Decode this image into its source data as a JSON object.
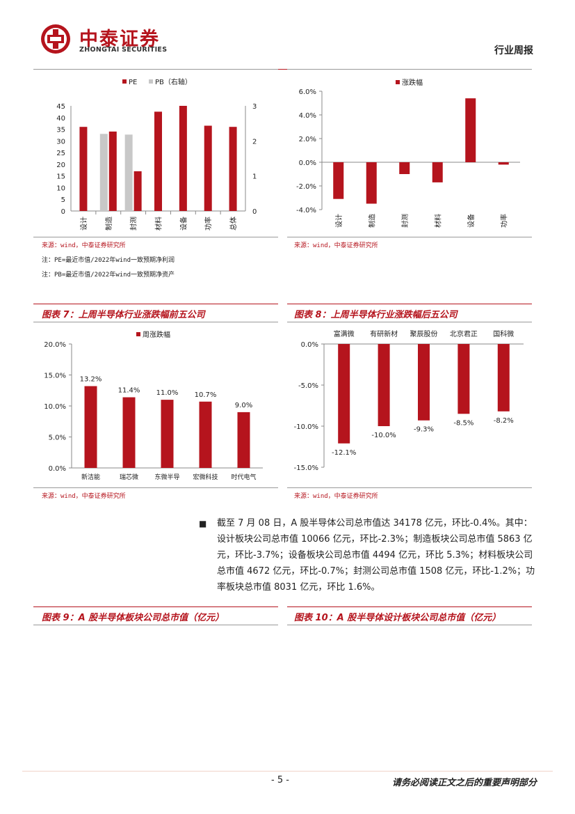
{
  "header": {
    "brand_cn": "中泰证券",
    "brand_en": "ZHONGTAI SECURITIES",
    "report_type": "行业周报",
    "accent_color": "#b5141d"
  },
  "charts": {
    "pe_pb": {
      "source": "来源：wind，中泰证券研究所",
      "notes": [
        "注：PE=最近市值/2022年wind一致预期净利润",
        "注：PB=最近市值/2022年wind一致预期净资产"
      ]
    },
    "weekly_change": {
      "source": "来源：wind，中泰证券研究所"
    },
    "fig7": {
      "title": "图表 7：上周半导体行业涨跌幅前五公司",
      "source": "来源：wind，中泰证券研究所"
    },
    "fig8": {
      "title": "图表 8：上周半导体行业涨跌幅后五公司",
      "source": "来源：wind，中泰证券研究所"
    }
  },
  "chart_data": [
    {
      "type": "bar",
      "categories": [
        "设计",
        "制造",
        "封测",
        "材料",
        "设备",
        "功率",
        "总体"
      ],
      "series": [
        {
          "name": "PE",
          "axis": "left",
          "color": "#b5141d",
          "values": [
            36,
            34,
            17,
            42.5,
            45,
            36.5,
            36
          ]
        },
        {
          "name": "PB（右轴）",
          "axis": "right",
          "color": "#c8c8c8",
          "values": [
            null,
            2.2,
            2.18,
            null,
            null,
            null,
            null
          ]
        }
      ],
      "yticks_left": [
        "0",
        "5",
        "10",
        "15",
        "20",
        "25",
        "30",
        "35",
        "40",
        "45"
      ],
      "yticks_right": [
        "0",
        "1",
        "2",
        "3"
      ],
      "ylim_left": [
        0,
        45
      ],
      "ylim_right": [
        0,
        3
      ],
      "legend": "top"
    },
    {
      "type": "bar",
      "categories": [
        "设计",
        "制造",
        "封测",
        "材料",
        "设备",
        "功率"
      ],
      "series": [
        {
          "name": "涨跌幅",
          "color": "#b5141d",
          "values": [
            -3.1,
            -3.5,
            -1.0,
            -1.7,
            5.4,
            -0.2
          ]
        }
      ],
      "yticks": [
        "-4.0%",
        "-2.0%",
        "0.0%",
        "2.0%",
        "4.0%",
        "6.0%"
      ],
      "ylim": [
        -4,
        6
      ],
      "legend": "top"
    },
    {
      "type": "bar",
      "categories": [
        "新洁能",
        "瑞芯微",
        "东微半导",
        "宏微科技",
        "时代电气"
      ],
      "series": [
        {
          "name": "周涨跌幅",
          "color": "#b5141d",
          "values": [
            13.2,
            11.4,
            11.0,
            10.7,
            9.0
          ]
        }
      ],
      "data_labels": [
        "13.2%",
        "11.4%",
        "11.0%",
        "10.7%",
        "9.0%"
      ],
      "yticks": [
        "0.0%",
        "5.0%",
        "10.0%",
        "15.0%",
        "20.0%"
      ],
      "ylim": [
        0,
        20
      ],
      "legend": "top"
    },
    {
      "type": "bar",
      "categories": [
        "富满微",
        "有研新材",
        "聚辰股份",
        "北京君正",
        "国科微"
      ],
      "series": [
        {
          "name": "",
          "color": "#b5141d",
          "values": [
            -12.1,
            -10.0,
            -9.3,
            -8.5,
            -8.2
          ]
        }
      ],
      "data_labels": [
        "-12.1%",
        "-10.0%",
        "-9.3%",
        "-8.5%",
        "-8.2%"
      ],
      "yticks": [
        "-15.0%",
        "-10.0%",
        "-5.0%",
        "0.0%"
      ],
      "ylim": [
        -15,
        0
      ]
    }
  ],
  "body": {
    "bullet": "■",
    "paragraph": "截至 7 月 08 日，A 股半导体公司总市值达 34178 亿元，环比-0.4%。其中：设计板块公司总市值 10066 亿元，环比-2.3%；制造板块公司总市值 5863 亿元，环比-3.7%；设备板块公司总市值 4494 亿元，环比 5.3%；材料板块公司总市值 4672 亿元，环比-0.7%；封测公司总市值 1508 亿元，环比-1.2%；功率板块总市值 8031 亿元，环比 1.6%。",
    "fig9_title": "图表 9：A 股半导体板块公司总市值（亿元）",
    "fig10_title": "图表 10：A 股半导体设计板块公司总市值（亿元）"
  },
  "footer": {
    "page_number": "- 5 -",
    "disclaimer": "请务必阅读正文之后的重要声明部分"
  }
}
